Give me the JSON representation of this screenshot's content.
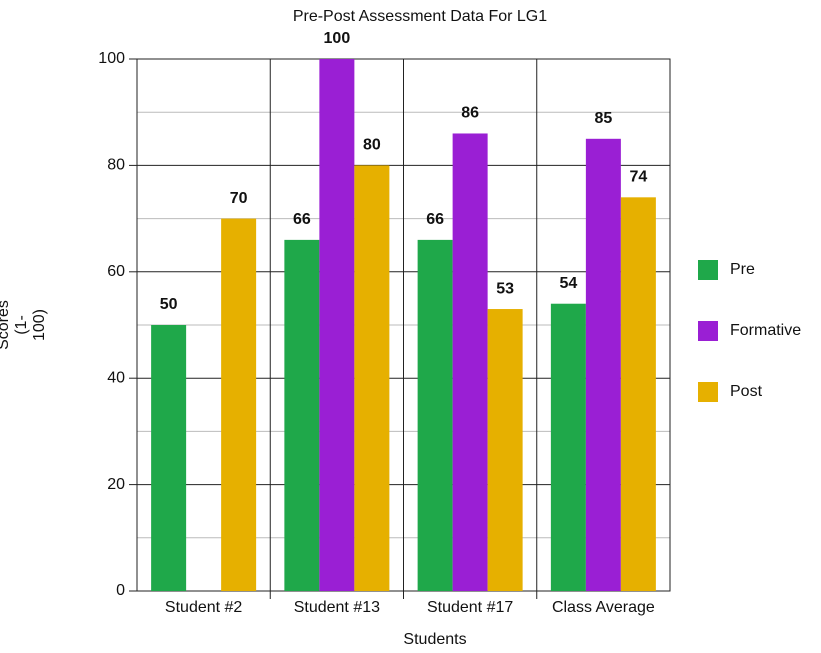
{
  "chart_data": {
    "type": "bar",
    "title": "Pre-Post Assessment Data For LG1",
    "x_label": "Students",
    "y_label": "Scores (1-100)",
    "categories": [
      "Student #2",
      "Student #13",
      "Student #17",
      "Class Average"
    ],
    "series": [
      {
        "name": "Pre",
        "color": "#1fa84a",
        "values": [
          50,
          66,
          66,
          54
        ]
      },
      {
        "name": "Formative",
        "color": "#9a1fd4",
        "values": [
          null,
          100,
          86,
          85
        ]
      },
      {
        "name": "Post",
        "color": "#e6b000",
        "values": [
          70,
          80,
          53,
          74
        ]
      }
    ],
    "ylim": [
      0,
      100
    ],
    "yticks": [
      0,
      20,
      40,
      60,
      80,
      100
    ],
    "minor_yticks": [
      10,
      30,
      50,
      70,
      90
    ],
    "grid": true,
    "legend": "right"
  }
}
